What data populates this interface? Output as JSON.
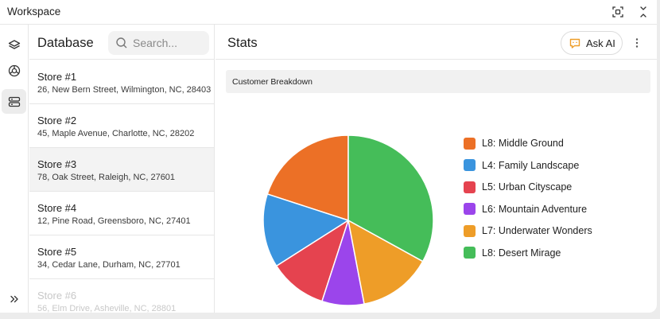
{
  "window": {
    "title": "Workspace"
  },
  "sidebar": {
    "icons": [
      "layers-icon",
      "chart-icon",
      "database-icon"
    ],
    "expand_icon": "double-chevron-right-icon"
  },
  "list": {
    "title": "Database",
    "search_placeholder": "Search...",
    "stores": [
      {
        "name": "Store #1",
        "address": "26, New Bern Street, Wilmington, NC, 28403"
      },
      {
        "name": "Store #2",
        "address": "45, Maple Avenue, Charlotte, NC, 28202"
      },
      {
        "name": "Store #3",
        "address": "78, Oak Street, Raleigh, NC, 27601"
      },
      {
        "name": "Store #4",
        "address": "12, Pine Road, Greensboro, NC, 27401"
      },
      {
        "name": "Store #5",
        "address": "34, Cedar Lane, Durham, NC, 27701"
      },
      {
        "name": "Store #6",
        "address": "56, Elm Drive, Asheville, NC, 28801"
      }
    ],
    "selected_index": 2
  },
  "main": {
    "title": "Stats",
    "ask_ai_label": "Ask AI",
    "card_title": "Customer Breakdown"
  },
  "chart_data": {
    "type": "pie",
    "title": "Customer Breakdown",
    "legend_position": "right",
    "series": [
      {
        "name": "L8: Middle Ground",
        "value": 20,
        "color": "#ec7026"
      },
      {
        "name": "L4: Family Landscape",
        "value": 14,
        "color": "#3a94de"
      },
      {
        "name": "L5: Urban Cityscape",
        "value": 11,
        "color": "#e5434f"
      },
      {
        "name": "L6: Mountain Adventure",
        "value": 8,
        "color": "#9b45eb"
      },
      {
        "name": "L7: Underwater Wonders",
        "value": 14,
        "color": "#ee9d28"
      },
      {
        "name": "L8: Desert Mirage",
        "value": 33,
        "color": "#45bd59"
      }
    ]
  },
  "colors": {
    "accent": "#ee9d28",
    "selected_row": "#f3f3f3",
    "border": "#e6e6e6"
  }
}
